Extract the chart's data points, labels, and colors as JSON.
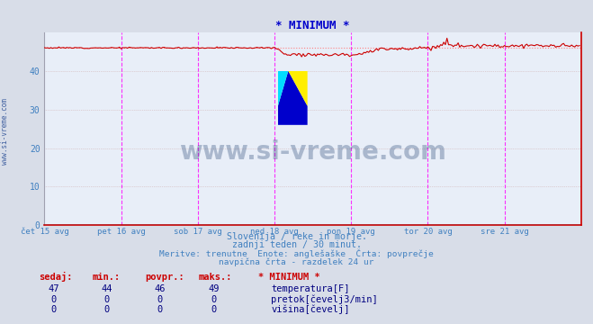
{
  "title": "* MINIMUM *",
  "background_color": "#d8dde8",
  "plot_bg_color": "#e8eef8",
  "title_color": "#0000cc",
  "xlabel_color": "#4080c0",
  "ylabel_color": "#4080c0",
  "xlim": [
    0,
    336
  ],
  "ylim": [
    0,
    50
  ],
  "yticks": [
    0,
    10,
    20,
    30,
    40
  ],
  "x_day_labels": [
    "čet 15 avg",
    "pet 16 avg",
    "sob 17 avg",
    "ned 18 avg",
    "pon 19 avg",
    "tor 20 avg",
    "sre 21 avg"
  ],
  "x_day_positions": [
    0,
    48,
    96,
    144,
    192,
    240,
    288
  ],
  "vline_positions": [
    48,
    96,
    144,
    192,
    240,
    288
  ],
  "hline_avg": 46.0,
  "temp_color": "#cc0000",
  "flow_color": "#008800",
  "height_color": "#0000cc",
  "hline_color": "#ff8080",
  "vline_color": "#ff00ff",
  "grid_color": "#d0b0b0",
  "watermark_text": "www.si-vreme.com",
  "watermark_color": "#1a3a6a",
  "watermark_alpha": 0.3,
  "subtitle1": "Slovenija / reke in morje.",
  "subtitle2": "zadnji teden / 30 minut.",
  "subtitle3": "Meritve: trenutne  Enote: anglešaške  Črta: povprečje",
  "subtitle4": "navpična črta - razdelek 24 ur",
  "legend_title": "* MINIMUM *",
  "legend_items": [
    "temperatura[F]",
    "pretok[čevelj3/min]",
    "višina[čevelj]"
  ],
  "legend_colors": [
    "#cc0000",
    "#008800",
    "#0000cc"
  ],
  "table_headers": [
    "sedaj:",
    "min.:",
    "povpr.:",
    "maks.:"
  ],
  "table_data": [
    [
      47,
      44,
      46,
      49
    ],
    [
      0,
      0,
      0,
      0
    ],
    [
      0,
      0,
      0,
      0
    ]
  ],
  "sidebar_text": "www.si-vreme.com"
}
